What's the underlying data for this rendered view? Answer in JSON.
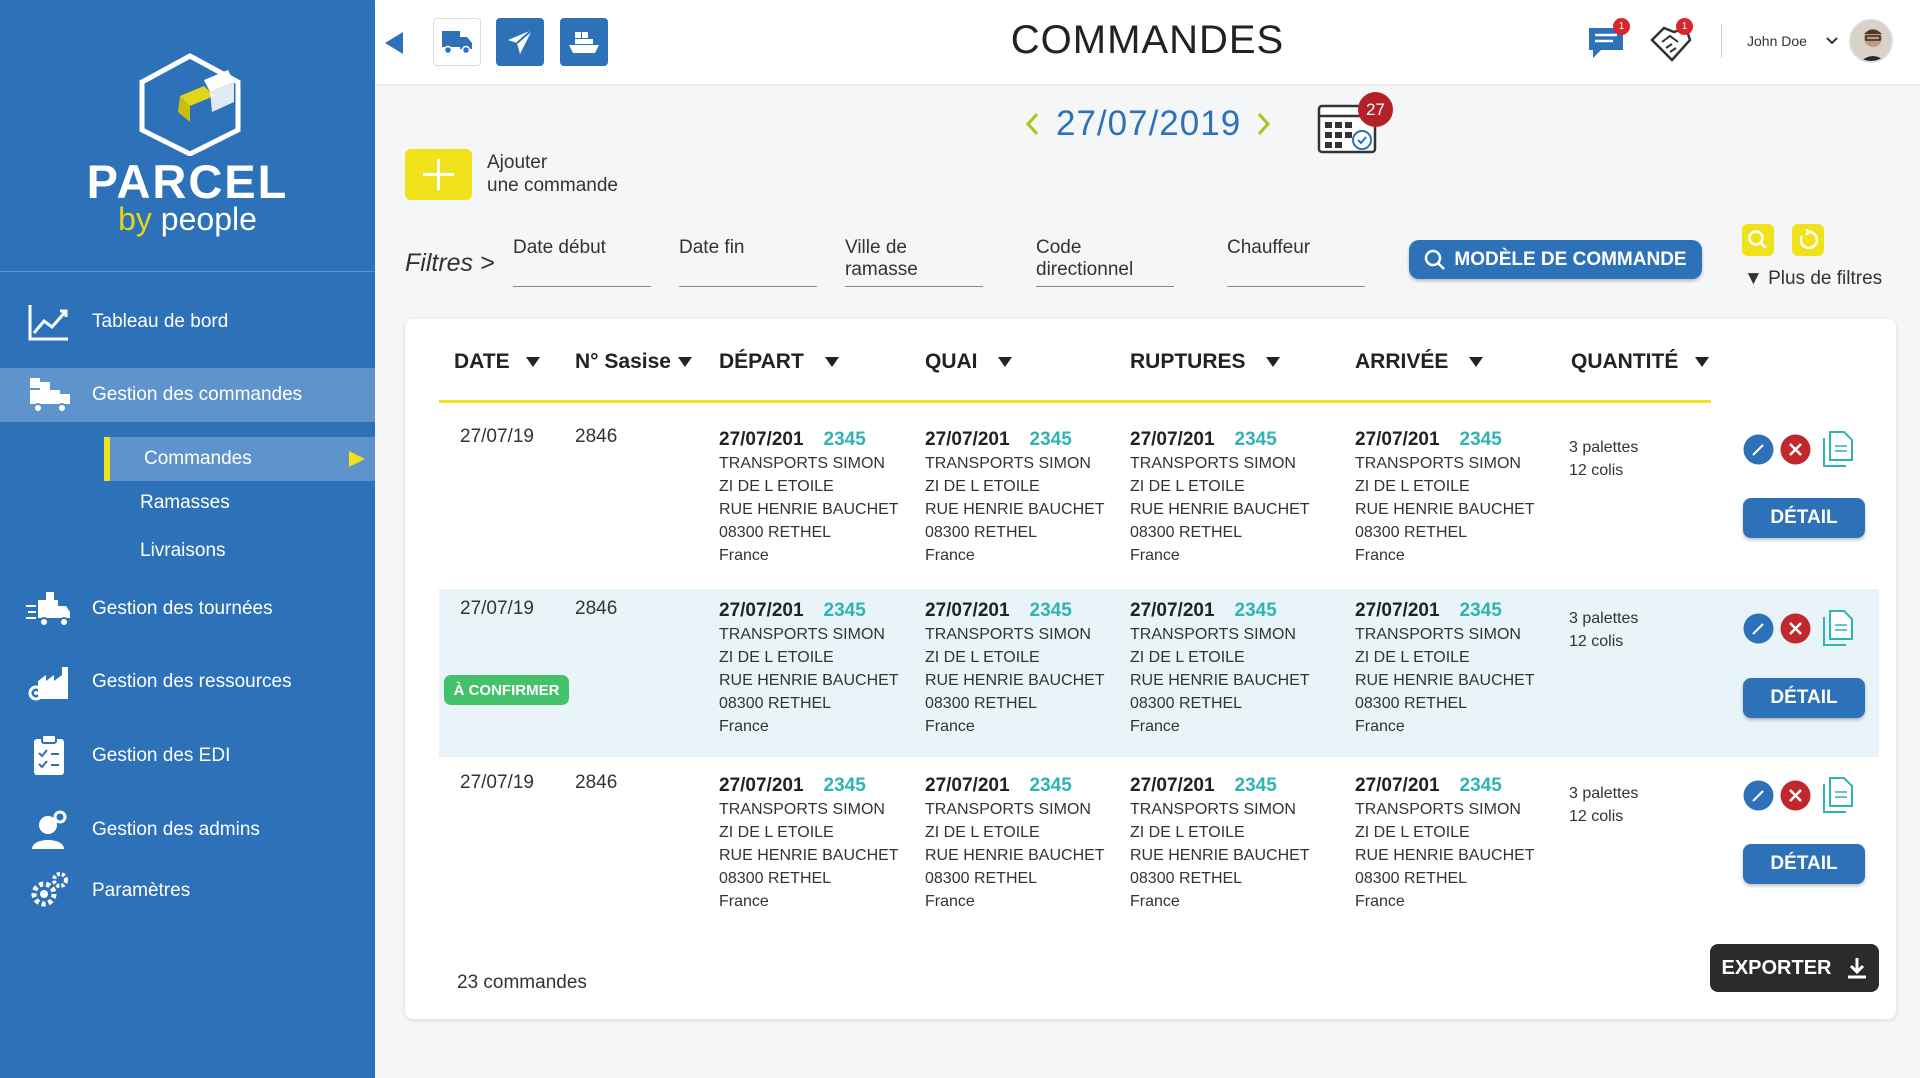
{
  "app": {
    "brand_main": "PARCEL",
    "brand_by": "by",
    "brand_people": "people"
  },
  "sidebar": {
    "items": [
      {
        "label": "Tableau de bord",
        "icon": "chart-line-icon"
      },
      {
        "label": "Gestion des commandes",
        "icon": "truck-boxes-icon"
      },
      {
        "label": "Gestion des tournées",
        "icon": "delivery-truck-icon"
      },
      {
        "label": "Gestion des ressources",
        "icon": "factory-gear-icon"
      },
      {
        "label": "Gestion des EDI",
        "icon": "clipboard-check-icon"
      },
      {
        "label": "Gestion des admins",
        "icon": "admin-user-icon"
      },
      {
        "label": "Paramètres",
        "icon": "gears-icon"
      }
    ],
    "subitems": [
      "Commandes",
      "Ramasses",
      "Livraisons"
    ]
  },
  "header": {
    "title": "COMMANDES",
    "user": "John Doe",
    "messages_badge": "1",
    "alerts_badge": "1"
  },
  "date": {
    "value": "27/07/2019",
    "calendar_badge": "27"
  },
  "add": {
    "line1": "Ajouter",
    "line2": "une commande"
  },
  "filters": {
    "label": "Filtres >",
    "fields": [
      "Date début",
      "Date fin",
      "Ville de ramasse",
      "Code directionnel",
      "Chauffeur"
    ],
    "model_button": "MODÈLE DE COMMANDE",
    "more": "▼ Plus de filtres"
  },
  "table": {
    "headers": [
      "DATE",
      "N° Sasise",
      "DÉPART",
      "QUAI",
      "RUPTURES",
      "ARRIVÉE",
      "QUANTITÉ"
    ],
    "rows": [
      {
        "date": "27/07/19",
        "num": "2846",
        "status": "",
        "qty1": "3 palettes",
        "qty2": "12 colis"
      },
      {
        "date": "27/07/19",
        "num": "2846",
        "status": "À CONFIRMER",
        "qty1": "3 palettes",
        "qty2": "12 colis"
      },
      {
        "date": "27/07/19",
        "num": "2846",
        "status": "",
        "qty1": "3 palettes",
        "qty2": "12 colis"
      }
    ],
    "block": {
      "d": "27/07/201",
      "n": "2345",
      "l1": "TRANSPORTS SIMON",
      "l2": "ZI DE L ETOILE",
      "l3": "RUE HENRIE BAUCHET",
      "l4": "08300 RETHEL",
      "l5": "France"
    },
    "detail_label": "DÉTAIL"
  },
  "footer": {
    "count": "23 commandes",
    "export": "EXPORTER"
  },
  "colors": {
    "primary": "#2d72b8",
    "accent": "#f0e21a",
    "teal": "#2fb3b3",
    "confirm": "#43c26b",
    "delete": "#c0282d"
  }
}
